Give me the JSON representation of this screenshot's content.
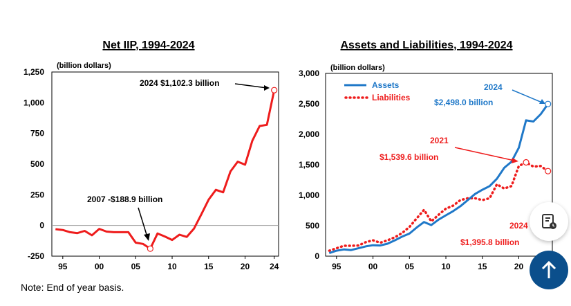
{
  "chart_data": [
    {
      "type": "line",
      "title": "Net IIP, 1994-2024",
      "unit_label": "(billion dollars)",
      "x_tick_labels": [
        "95",
        "00",
        "05",
        "10",
        "15",
        "20",
        "24"
      ],
      "x_ticks": [
        1995,
        2000,
        2005,
        2010,
        2015,
        2020,
        2024
      ],
      "y_tick_labels": [
        "1,250",
        "1,000",
        "750",
        "500",
        "250",
        "0",
        "-250"
      ],
      "y_ticks": [
        1250,
        1000,
        750,
        500,
        250,
        0,
        -250
      ],
      "ylim": [
        -250,
        1250
      ],
      "xlim": [
        1993.5,
        2024.6
      ],
      "zero_line": true,
      "series": [
        {
          "color": "#ee1c1c",
          "x": [
            1994,
            1995,
            1996,
            1997,
            1998,
            1999,
            2000,
            2001,
            2002,
            2003,
            2004,
            2005,
            2006,
            2007,
            2008,
            2009,
            2010,
            2011,
            2012,
            2013,
            2014,
            2015,
            2016,
            2017,
            2018,
            2019,
            2020,
            2021,
            2022,
            2023,
            2024
          ],
          "values": [
            -30,
            -37,
            -55,
            -62,
            -44,
            -80,
            -28,
            -50,
            -55,
            -55,
            -55,
            -140,
            -150,
            -188.9,
            -65,
            -90,
            -118,
            -75,
            -93,
            -25,
            90,
            210,
            290,
            270,
            440,
            520,
            495,
            690,
            810,
            820,
            1102.3
          ]
        }
      ],
      "annotations": [
        {
          "text": "2024 $1,102.3 billion",
          "x": 2024,
          "y": 1102.3
        },
        {
          "text": "2007 -$188.9 billion",
          "x": 2007,
          "y": -188.9
        }
      ]
    },
    {
      "type": "line",
      "title": "Assets and Liabilities, 1994-2024",
      "unit_label": "(billion dollars)",
      "x_tick_labels": [
        "95",
        "00",
        "05",
        "10",
        "15",
        "20"
      ],
      "x_ticks": [
        1995,
        2000,
        2005,
        2010,
        2015,
        2020
      ],
      "y_tick_labels": [
        "3,000",
        "2,500",
        "2,000",
        "1,500",
        "1,000",
        "500",
        "0"
      ],
      "y_ticks": [
        3000,
        2500,
        2000,
        1500,
        1000,
        500,
        0
      ],
      "ylim": [
        0,
        3000
      ],
      "xlim": [
        1993.5,
        2024.6
      ],
      "legend": "top-left",
      "series": [
        {
          "name": "Assets",
          "color": "#1f78c8",
          "style": "solid",
          "x": [
            1994,
            1995,
            1996,
            1997,
            1998,
            1999,
            2000,
            2001,
            2002,
            2003,
            2004,
            2005,
            2006,
            2007,
            2008,
            2009,
            2010,
            2011,
            2012,
            2013,
            2014,
            2015,
            2016,
            2017,
            2018,
            2019,
            2020,
            2021,
            2022,
            2023,
            2024
          ],
          "values": [
            50,
            90,
            110,
            100,
            130,
            160,
            180,
            175,
            205,
            260,
            320,
            370,
            470,
            560,
            510,
            600,
            670,
            740,
            820,
            920,
            1020,
            1090,
            1150,
            1270,
            1450,
            1550,
            1780,
            2230,
            2210,
            2330,
            2498.0
          ]
        },
        {
          "name": "Liabilities",
          "color": "#ee1c1c",
          "style": "dotted",
          "x": [
            1994,
            1995,
            1996,
            1997,
            1998,
            1999,
            2000,
            2001,
            2002,
            2003,
            2004,
            2005,
            2006,
            2007,
            2008,
            2009,
            2010,
            2011,
            2012,
            2013,
            2014,
            2015,
            2016,
            2017,
            2018,
            2019,
            2020,
            2021,
            2022,
            2023,
            2024
          ],
          "values": [
            90,
            130,
            170,
            170,
            175,
            230,
            260,
            220,
            260,
            310,
            380,
            480,
            620,
            760,
            570,
            680,
            780,
            830,
            920,
            950,
            950,
            920,
            950,
            1180,
            1110,
            1150,
            1480,
            1539.6,
            1470,
            1480,
            1395.8
          ]
        }
      ],
      "annotations": [
        {
          "text": "2024",
          "x": 2024,
          "y": 2498.0
        },
        {
          "text": "$2,498.0 billion",
          "x": 2024,
          "y": 2498.0
        },
        {
          "text": "2021",
          "x": 2021,
          "y": 1539.6
        },
        {
          "text": "$1,539.6 billion",
          "x": 2021,
          "y": 1539.6
        },
        {
          "text": "2024",
          "x": 2024,
          "y": 1395.8
        },
        {
          "text": "$1,395.8 billion",
          "x": 2024,
          "y": 1395.8
        }
      ]
    }
  ],
  "note": "Note: End of year basis.",
  "controls": {
    "tool_icon": "document-clock-icon",
    "scroll_top_icon": "arrow-up-icon"
  }
}
